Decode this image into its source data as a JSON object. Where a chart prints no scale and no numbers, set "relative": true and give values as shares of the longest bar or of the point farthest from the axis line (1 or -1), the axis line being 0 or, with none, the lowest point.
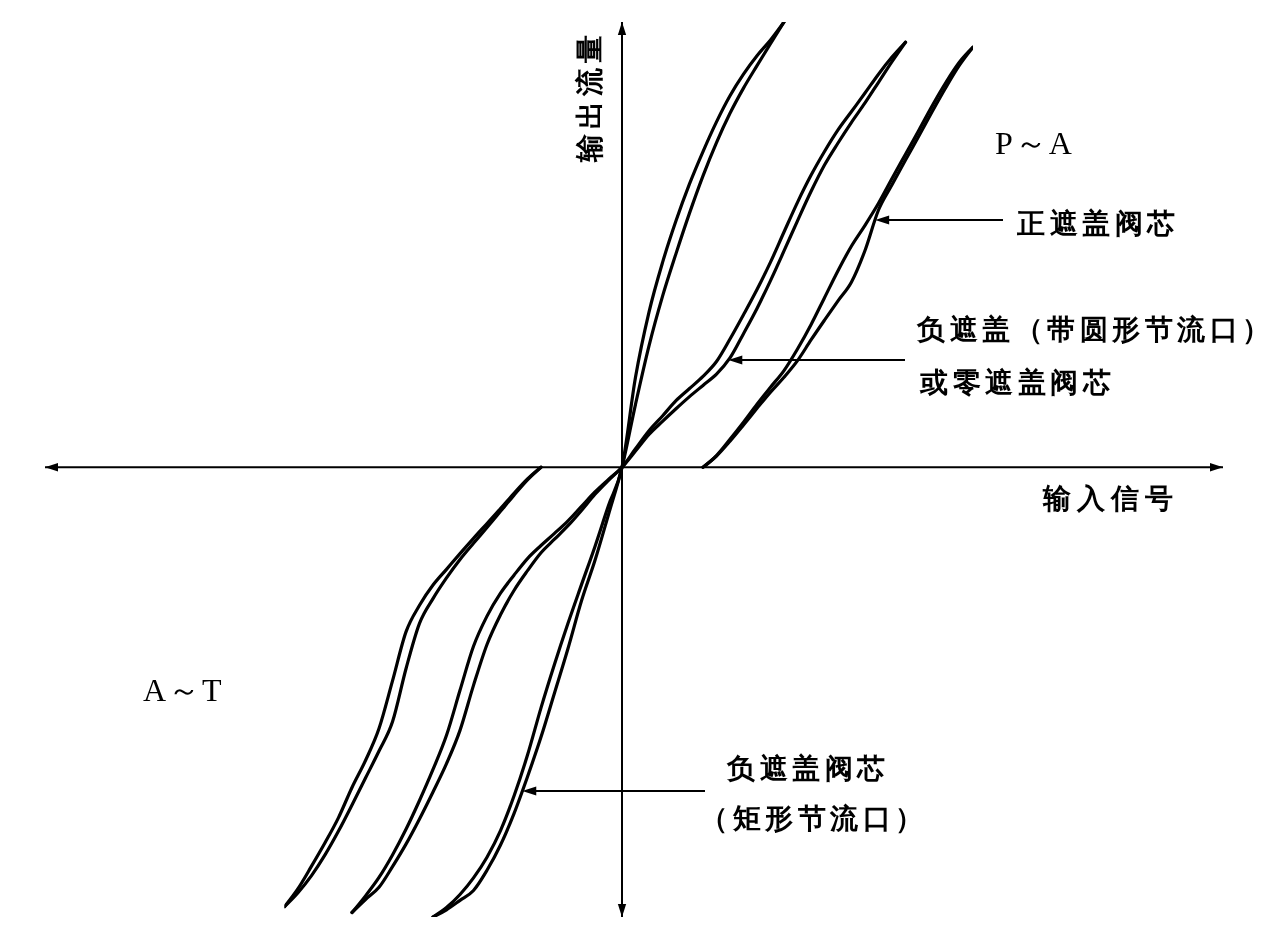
{
  "chart_data": {
    "type": "line",
    "relative": true,
    "xlabel": "输入信号",
    "ylabel": "输出流量",
    "annotations": [
      "P～A",
      "正遮盖阀芯",
      "负遮盖（带圆形节流口）或零遮盖阀芯",
      "负遮盖阀芯（矩形节流口）",
      "A～T"
    ],
    "categories": [
      null,
      null,
      null,
      null,
      null,
      null,
      null,
      null,
      null,
      null,
      null,
      null,
      null,
      null,
      null,
      null,
      null,
      null,
      null,
      null,
      null,
      null,
      null,
      null,
      null,
      null,
      null,
      null,
      null,
      null,
      null,
      null,
      null,
      null,
      null,
      null,
      null,
      null,
      null,
      null,
      null,
      null,
      null,
      null,
      null,
      null,
      null,
      null,
      null,
      null,
      null,
      null
    ],
    "series": [
      {
        "color": "#000000",
        "values": [
          null,
          null,
          null,
          null,
          null,
          null,
          null,
          null,
          null,
          null,
          null,
          -1,
          -0.979,
          -0.95,
          -0.913,
          -0.867,
          -0.808,
          -0.731,
          -0.64,
          -0.535,
          -0.438,
          -0.347,
          -0.261,
          -0.176,
          -0.085,
          0,
          0.2,
          0.345,
          0.455,
          0.548,
          0.63,
          0.702,
          0.768,
          0.826,
          0.874,
          0.915,
          0.95,
          0.99,
          null,
          null,
          null,
          null,
          null,
          null,
          null,
          null,
          null,
          null,
          null,
          null,
          null,
          null
        ]
      },
      {
        "color": "#000000",
        "values": [
          null,
          null,
          null,
          null,
          null,
          null,
          null,
          null,
          null,
          null,
          null,
          -1,
          -0.984,
          -0.963,
          -0.941,
          -0.896,
          -0.84,
          -0.77,
          -0.688,
          -0.6,
          -0.502,
          -0.403,
          -0.297,
          -0.207,
          -0.105,
          0,
          0.14,
          0.27,
          0.38,
          0.475,
          0.565,
          0.648,
          0.722,
          0.787,
          0.843,
          0.893,
          0.942,
          0.99,
          null,
          null,
          null,
          null,
          null,
          null,
          null,
          null,
          null,
          null,
          null,
          null,
          null,
          null
        ]
      },
      {
        "color": "#000000",
        "values": [
          null,
          null,
          null,
          null,
          null,
          -0.99,
          -0.953,
          -0.912,
          -0.862,
          -0.805,
          -0.741,
          -0.672,
          -0.596,
          -0.496,
          -0.398,
          -0.331,
          -0.28,
          -0.24,
          -0.203,
          -0.174,
          -0.147,
          -0.119,
          -0.087,
          -0.055,
          -0.027,
          0,
          0.041,
          0.081,
          0.114,
          0.148,
          0.175,
          0.202,
          0.235,
          0.285,
          0.339,
          0.395,
          0.456,
          0.523,
          0.589,
          0.649,
          0.702,
          0.75,
          0.791,
          0.832,
          0.874,
          0.912,
          0.945,
          null,
          null,
          null,
          null,
          null
        ]
      },
      {
        "color": "#000000",
        "values": [
          null,
          null,
          null,
          null,
          null,
          -0.99,
          -0.961,
          -0.934,
          -0.888,
          -0.838,
          -0.782,
          -0.722,
          -0.659,
          -0.585,
          -0.485,
          -0.394,
          -0.328,
          -0.274,
          -0.23,
          -0.19,
          -0.16,
          -0.13,
          -0.096,
          -0.06,
          -0.029,
          0,
          0.036,
          0.073,
          0.102,
          0.13,
          0.157,
          0.182,
          0.207,
          0.243,
          0.297,
          0.353,
          0.415,
          0.481,
          0.548,
          0.613,
          0.672,
          0.721,
          0.767,
          0.81,
          0.856,
          0.902,
          0.945,
          null,
          null,
          null,
          null,
          null
        ]
      },
      {
        "color": "#000000",
        "values": [
          -0.977,
          -0.937,
          -0.887,
          -0.835,
          -0.779,
          -0.712,
          -0.652,
          -0.581,
          -0.475,
          -0.366,
          -0.307,
          -0.262,
          -0.227,
          -0.192,
          -0.158,
          -0.125,
          -0.092,
          -0.058,
          -0.026,
          0,
          null,
          null,
          null,
          null,
          null,
          null,
          null,
          null,
          null,
          null,
          null,
          null,
          null,
          null,
          null,
          null,
          null,
          null,
          null,
          null,
          null,
          null,
          null,
          null,
          null,
          null,
          null,
          null,
          null,
          null,
          null,
          null
        ]
      },
      {
        "color": "#000000",
        "values": [
          -0.977,
          -0.946,
          -0.908,
          -0.862,
          -0.809,
          -0.751,
          -0.691,
          -0.631,
          -0.566,
          -0.448,
          -0.347,
          -0.292,
          -0.246,
          -0.205,
          -0.169,
          -0.134,
          -0.098,
          -0.062,
          -0.028,
          0,
          null,
          null,
          null,
          null,
          null,
          null,
          null,
          null,
          null,
          null,
          null,
          null,
          null,
          null,
          null,
          null,
          null,
          null,
          null,
          null,
          null,
          null,
          null,
          null,
          null,
          null,
          null,
          null,
          null,
          null,
          null,
          null
        ]
      },
      {
        "color": "#000000",
        "values": [
          null,
          null,
          null,
          null,
          null,
          null,
          null,
          null,
          null,
          null,
          null,
          null,
          null,
          null,
          null,
          null,
          null,
          null,
          null,
          null,
          null,
          null,
          null,
          null,
          null,
          null,
          null,
          null,
          null,
          null,
          null,
          0,
          0.026,
          0.062,
          0.1,
          0.14,
          0.178,
          0.215,
          0.263,
          0.317,
          0.377,
          0.437,
          0.492,
          0.538,
          0.587,
          0.642,
          0.696,
          0.75,
          0.805,
          0.856,
          0.901,
          0.934
        ]
      },
      {
        "color": "#000000",
        "values": [
          null,
          null,
          null,
          null,
          null,
          null,
          null,
          null,
          null,
          null,
          null,
          null,
          null,
          null,
          null,
          null,
          null,
          null,
          null,
          null,
          null,
          null,
          null,
          null,
          null,
          null,
          null,
          null,
          null,
          null,
          null,
          0,
          0.025,
          0.058,
          0.094,
          0.131,
          0.167,
          0.2,
          0.237,
          0.283,
          0.327,
          0.37,
          0.412,
          0.482,
          0.572,
          0.628,
          0.683,
          0.737,
          0.792,
          0.845,
          0.894,
          0.934
        ]
      }
    ]
  }
}
